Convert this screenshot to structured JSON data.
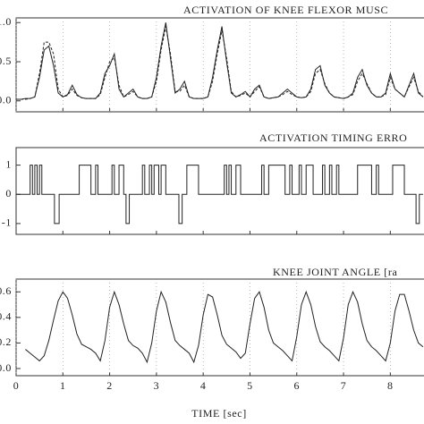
{
  "chart_data": [
    {
      "type": "line",
      "title": "ACTIVATION OF KNEE FLEXOR MUSC",
      "x": [
        0,
        0.1,
        0.2,
        0.3,
        0.4,
        0.5,
        0.6,
        0.7,
        0.8,
        0.9,
        1.0,
        1.1,
        1.2,
        1.3,
        1.4,
        1.5,
        1.6,
        1.7,
        1.8,
        1.9,
        2.0,
        2.1,
        2.2,
        2.3,
        2.4,
        2.5,
        2.6,
        2.7,
        2.8,
        2.9,
        3.0,
        3.1,
        3.2,
        3.3,
        3.4,
        3.5,
        3.6,
        3.7,
        3.8,
        3.9,
        4.0,
        4.1,
        4.2,
        4.3,
        4.4,
        4.5,
        4.6,
        4.7,
        4.8,
        4.9,
        5.0,
        5.1,
        5.2,
        5.3,
        5.4,
        5.5,
        5.6,
        5.7,
        5.8,
        5.9,
        6.0,
        6.1,
        6.2,
        6.3,
        6.4,
        6.5,
        6.6,
        6.7,
        6.8,
        6.9,
        7.0,
        7.1,
        7.2,
        7.3,
        7.4,
        7.5,
        7.6,
        7.7,
        7.8,
        7.9,
        8.0,
        8.1,
        8.2,
        8.3,
        8.4,
        8.5,
        8.6,
        8.7
      ],
      "series": [
        {
          "color": "#222222",
          "linestyle": "solid",
          "values": [
            0.02,
            0.02,
            0.03,
            0.03,
            0.05,
            0.3,
            0.65,
            0.7,
            0.45,
            0.1,
            0.05,
            0.08,
            0.2,
            0.08,
            0.04,
            0.03,
            0.03,
            0.03,
            0.1,
            0.35,
            0.45,
            0.6,
            0.15,
            0.05,
            0.1,
            0.15,
            0.05,
            0.03,
            0.03,
            0.05,
            0.3,
            0.7,
            1.0,
            0.55,
            0.1,
            0.15,
            0.25,
            0.05,
            0.03,
            0.03,
            0.03,
            0.05,
            0.3,
            0.65,
            0.95,
            0.5,
            0.1,
            0.05,
            0.08,
            0.12,
            0.05,
            0.15,
            0.2,
            0.05,
            0.03,
            0.04,
            0.05,
            0.1,
            0.15,
            0.1,
            0.05,
            0.04,
            0.05,
            0.15,
            0.4,
            0.45,
            0.2,
            0.1,
            0.05,
            0.04,
            0.03,
            0.05,
            0.1,
            0.3,
            0.4,
            0.2,
            0.1,
            0.05,
            0.05,
            0.1,
            0.35,
            0.15,
            0.1,
            0.05,
            0.2,
            0.35,
            0.1,
            0.05
          ]
        },
        {
          "color": "#222222",
          "linestyle": "dashed",
          "values": [
            0.02,
            0.02,
            0.02,
            0.03,
            0.05,
            0.35,
            0.75,
            0.75,
            0.6,
            0.15,
            0.05,
            0.07,
            0.15,
            0.07,
            0.04,
            0.03,
            0.03,
            0.03,
            0.08,
            0.3,
            0.5,
            0.55,
            0.2,
            0.05,
            0.08,
            0.12,
            0.05,
            0.03,
            0.03,
            0.05,
            0.25,
            0.65,
            0.95,
            0.6,
            0.12,
            0.12,
            0.2,
            0.05,
            0.03,
            0.03,
            0.03,
            0.05,
            0.25,
            0.6,
            0.9,
            0.55,
            0.12,
            0.05,
            0.07,
            0.1,
            0.05,
            0.12,
            0.18,
            0.05,
            0.03,
            0.04,
            0.05,
            0.08,
            0.12,
            0.08,
            0.05,
            0.04,
            0.05,
            0.12,
            0.35,
            0.4,
            0.22,
            0.1,
            0.05,
            0.04,
            0.03,
            0.05,
            0.08,
            0.25,
            0.35,
            0.22,
            0.1,
            0.05,
            0.05,
            0.08,
            0.3,
            0.15,
            0.1,
            0.05,
            0.18,
            0.3,
            0.12,
            0.05
          ]
        }
      ],
      "xlim": [
        0,
        8.72
      ],
      "xticks": [
        0,
        1,
        2,
        3,
        4,
        5,
        6,
        7,
        8
      ],
      "show_xticklabels": false,
      "ylim": [
        -0.14,
        1.06
      ],
      "yticks": [
        {
          "value": 0,
          "label": "0.0"
        },
        {
          "value": 0.5,
          "label": "0.5"
        },
        {
          "value": 1,
          "label": "1.0"
        }
      ],
      "grid": true
    },
    {
      "type": "line",
      "title": "ACTIVATION TIMING ERRO",
      "drawstyle": "steps-post",
      "x": [
        0,
        0.3,
        0.35,
        0.4,
        0.45,
        0.5,
        0.55,
        0.82,
        0.92,
        1.35,
        1.6,
        1.7,
        1.75,
        2.05,
        2.1,
        2.2,
        2.3,
        2.35,
        2.42,
        2.7,
        2.75,
        2.85,
        2.9,
        2.95,
        3.05,
        3.1,
        3.2,
        3.48,
        3.55,
        3.65,
        3.9,
        4.45,
        4.5,
        4.55,
        4.6,
        4.7,
        4.8,
        5.25,
        5.3,
        5.4,
        5.75,
        5.85,
        5.9,
        6.05,
        6.1,
        6.2,
        6.35,
        6.55,
        6.6,
        6.7,
        6.75,
        6.85,
        6.9,
        7.3,
        7.6,
        7.7,
        7.75,
        8.05,
        8.3,
        8.55,
        8.62,
        8.7
      ],
      "series": [
        {
          "color": "#222222",
          "linestyle": "solid",
          "values": [
            0,
            1,
            0,
            1,
            0,
            1,
            0,
            -1,
            0,
            1,
            0,
            1,
            0,
            1,
            0,
            1,
            0,
            -1,
            0,
            1,
            0,
            1,
            0,
            1,
            0,
            1,
            0,
            -1,
            0,
            1,
            0,
            1,
            0,
            1,
            0,
            1,
            0,
            1,
            0,
            1,
            0,
            1,
            0,
            1,
            0,
            1,
            0,
            1,
            0,
            1,
            0,
            1,
            0,
            1,
            0,
            1,
            0,
            1,
            0,
            -1,
            0,
            0
          ]
        }
      ],
      "xlim": [
        0,
        8.72
      ],
      "xticks": [
        0,
        1,
        2,
        3,
        4,
        5,
        6,
        7,
        8
      ],
      "show_xticklabels": false,
      "ylim": [
        -1.37,
        1.6
      ],
      "yticks": [
        -1,
        0,
        1
      ],
      "grid": false
    },
    {
      "type": "line",
      "title": "KNEE JOINT ANGLE [ra",
      "xlabel": "TIME [sec]",
      "x": [
        0.2,
        0.3,
        0.4,
        0.5,
        0.6,
        0.7,
        0.8,
        0.9,
        1.0,
        1.1,
        1.2,
        1.3,
        1.4,
        1.5,
        1.6,
        1.7,
        1.8,
        1.9,
        2.0,
        2.1,
        2.2,
        2.3,
        2.4,
        2.5,
        2.6,
        2.7,
        2.8,
        2.9,
        3.0,
        3.1,
        3.2,
        3.3,
        3.4,
        3.5,
        3.6,
        3.7,
        3.8,
        3.9,
        4.0,
        4.1,
        4.2,
        4.3,
        4.4,
        4.5,
        4.6,
        4.7,
        4.8,
        4.9,
        5.0,
        5.1,
        5.2,
        5.3,
        5.4,
        5.5,
        5.6,
        5.7,
        5.8,
        5.9,
        6.0,
        6.1,
        6.2,
        6.3,
        6.4,
        6.5,
        6.6,
        6.7,
        6.8,
        6.9,
        7.0,
        7.1,
        7.2,
        7.3,
        7.4,
        7.5,
        7.6,
        7.7,
        7.8,
        7.9,
        8.0,
        8.1,
        8.2,
        8.3,
        8.4,
        8.5,
        8.6,
        8.7
      ],
      "series": [
        {
          "color": "#222222",
          "linestyle": "solid",
          "values": [
            0.15,
            0.12,
            0.09,
            0.06,
            0.1,
            0.22,
            0.38,
            0.53,
            0.6,
            0.55,
            0.42,
            0.27,
            0.19,
            0.17,
            0.15,
            0.12,
            0.06,
            0.22,
            0.48,
            0.6,
            0.5,
            0.35,
            0.22,
            0.18,
            0.16,
            0.12,
            0.05,
            0.2,
            0.45,
            0.6,
            0.52,
            0.36,
            0.22,
            0.18,
            0.15,
            0.12,
            0.05,
            0.18,
            0.42,
            0.58,
            0.56,
            0.42,
            0.26,
            0.19,
            0.16,
            0.13,
            0.08,
            0.12,
            0.35,
            0.55,
            0.6,
            0.48,
            0.3,
            0.2,
            0.17,
            0.14,
            0.1,
            0.06,
            0.25,
            0.5,
            0.6,
            0.5,
            0.33,
            0.21,
            0.17,
            0.14,
            0.1,
            0.06,
            0.24,
            0.5,
            0.6,
            0.52,
            0.35,
            0.22,
            0.17,
            0.14,
            0.1,
            0.06,
            0.2,
            0.45,
            0.58,
            0.58,
            0.45,
            0.3,
            0.2,
            0.17
          ]
        }
      ],
      "xlim": [
        0,
        8.72
      ],
      "xticks": [
        0,
        1,
        2,
        3,
        4,
        5,
        6,
        7,
        8
      ],
      "show_xticklabels": true,
      "ylim": [
        -0.056,
        0.7
      ],
      "yticks": [
        {
          "value": 0,
          "label": "0.0"
        },
        0.2,
        0.4,
        0.6
      ],
      "grid": true
    }
  ]
}
